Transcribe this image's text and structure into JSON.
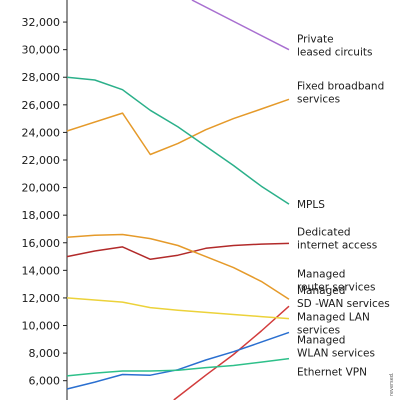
{
  "chart_data": {
    "type": "line",
    "xlim": [
      0,
      8
    ],
    "ylim": [
      4600,
      33600
    ],
    "y_ticks": [
      6000,
      8000,
      10000,
      12000,
      14000,
      16000,
      18000,
      20000,
      22000,
      24000,
      26000,
      28000,
      30000,
      32000
    ],
    "y_tick_labels": [
      "6,000",
      "8,000",
      "10,000",
      "12,000",
      "14,000",
      "16,000",
      "18,000",
      "20,000",
      "22,000",
      "24,000",
      "26,000",
      "28,000",
      "30,000",
      "32,000"
    ],
    "grid": false,
    "legend": "inline labels at right end of each line",
    "series": [
      {
        "name": "Private leased circuits",
        "label_lines": [
          "Private",
          "leased circuits"
        ],
        "color": "#a86fd0",
        "x": [
          4.5,
          8
        ],
        "values": [
          33600,
          30000
        ]
      },
      {
        "name": "Fixed broadband services",
        "label_lines": [
          "Fixed broadband",
          "services"
        ],
        "color": "#e59a2a",
        "x": [
          0,
          2,
          3,
          4,
          5,
          6,
          7,
          8
        ],
        "values": [
          24100,
          25400,
          22400,
          23200,
          24200,
          25000,
          25700,
          26400
        ]
      },
      {
        "name": "MPLS",
        "label_lines": [
          "MPLS"
        ],
        "color": "#2bb08a",
        "x": [
          0,
          1,
          2,
          3,
          4,
          5,
          6,
          7,
          8
        ],
        "values": [
          28000,
          27800,
          27100,
          25600,
          24400,
          23000,
          21600,
          20100,
          18800
        ]
      },
      {
        "name": "Dedicated internet access",
        "label_lines": [
          "Dedicated",
          "internet access"
        ],
        "color": "#b22a2a",
        "x": [
          0,
          1,
          2,
          3,
          4,
          5,
          6,
          7,
          8
        ],
        "values": [
          15000,
          15400,
          15700,
          14800,
          15100,
          15600,
          15800,
          15900,
          15950
        ]
      },
      {
        "name": "Managed router services",
        "label_lines": [
          "Managed",
          "router services"
        ],
        "color": "#e59a2a",
        "x": [
          0,
          1,
          2,
          3,
          4,
          5,
          6,
          7,
          8
        ],
        "values": [
          16400,
          16550,
          16600,
          16300,
          15800,
          15000,
          14200,
          13200,
          11900
        ]
      },
      {
        "name": "Managed SD -WAN services",
        "label_lines": [
          "Managed",
          "SD -WAN services"
        ],
        "color": "#d23c3c",
        "x": [
          3.85,
          5,
          6,
          7,
          8
        ],
        "values": [
          4600,
          6400,
          7900,
          9600,
          11400
        ]
      },
      {
        "name": "Managed LAN services",
        "label_lines": [
          "Managed LAN",
          "services"
        ],
        "color": "#ecd23a",
        "x": [
          0,
          1,
          2,
          3,
          4,
          5,
          6,
          7,
          8
        ],
        "values": [
          12000,
          11850,
          11700,
          11300,
          11100,
          10950,
          10800,
          10650,
          10500
        ]
      },
      {
        "name": "Managed WLAN services",
        "label_lines": [
          "Managed",
          "WLAN services"
        ],
        "color": "#2a6fd0",
        "x": [
          0,
          1,
          2,
          3,
          4,
          5,
          6,
          7,
          8
        ],
        "values": [
          5400,
          5900,
          6450,
          6400,
          6800,
          7500,
          8100,
          8800,
          9500
        ]
      },
      {
        "name": "Ethernet VPN",
        "label_lines": [
          "Ethernet VPN"
        ],
        "color": "#2ec08a",
        "x": [
          0,
          1,
          2,
          3,
          4,
          5,
          6,
          7,
          8
        ],
        "values": [
          6350,
          6550,
          6700,
          6700,
          6750,
          6950,
          7100,
          7350,
          7600
        ]
      }
    ],
    "side_note": "reversed."
  }
}
